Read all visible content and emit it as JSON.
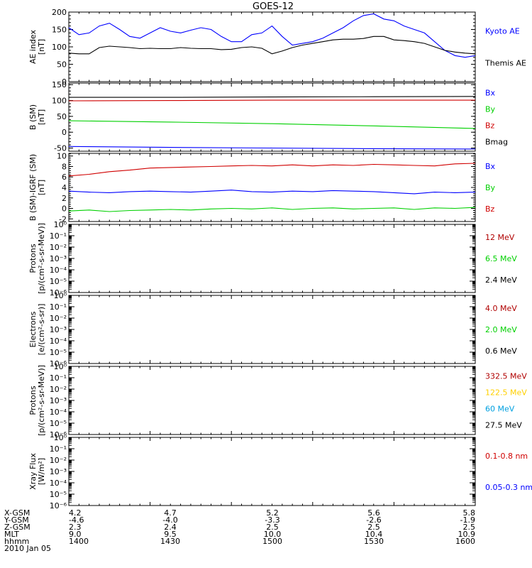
{
  "title": "GOES-12",
  "colors": {
    "black": "#000000",
    "blue": "#0000ff",
    "red": "#d00000",
    "green": "#00d000",
    "yellow": "#ffd000",
    "cyan": "#00a0e0",
    "darkred": "#b00000"
  },
  "chart_data": [
    {
      "type": "line",
      "ylabel": [
        "AE index",
        "[nT]"
      ],
      "ylim": [
        0,
        200
      ],
      "yticks": [
        0,
        50,
        100,
        150,
        200
      ],
      "xlim": [
        1400,
        1600
      ],
      "legend": [
        {
          "label": "Kyoto AE",
          "color": "blue"
        },
        {
          "label": "Themis AE",
          "color": "black"
        }
      ],
      "series": [
        {
          "name": "Kyoto AE",
          "color": "blue",
          "x": [
            1400,
            1405,
            1410,
            1415,
            1420,
            1425,
            1430,
            1435,
            1440,
            1445,
            1450,
            1455,
            1460,
            1465,
            1470,
            1475,
            1480,
            1485,
            1490,
            1495,
            1500,
            1505,
            1510,
            1515,
            1520,
            1525,
            1530,
            1535,
            1540,
            1545,
            1550,
            1555,
            1560,
            1565,
            1570,
            1575,
            1580,
            1585,
            1590,
            1595,
            1600
          ],
          "y": [
            155,
            135,
            140,
            160,
            168,
            150,
            130,
            125,
            140,
            155,
            145,
            140,
            148,
            155,
            150,
            130,
            115,
            115,
            135,
            140,
            160,
            130,
            105,
            110,
            115,
            125,
            140,
            155,
            175,
            190,
            195,
            180,
            175,
            160,
            150,
            140,
            115,
            90,
            75,
            70,
            75
          ]
        },
        {
          "name": "Themis AE",
          "color": "black",
          "x": [
            1400,
            1405,
            1410,
            1415,
            1420,
            1425,
            1430,
            1435,
            1440,
            1445,
            1450,
            1455,
            1460,
            1465,
            1470,
            1475,
            1480,
            1485,
            1490,
            1495,
            1500,
            1505,
            1510,
            1515,
            1520,
            1525,
            1530,
            1535,
            1540,
            1545,
            1550,
            1555,
            1560,
            1565,
            1570,
            1575,
            1580,
            1585,
            1590,
            1595,
            1600
          ],
          "y": [
            82,
            80,
            80,
            98,
            102,
            100,
            98,
            95,
            96,
            95,
            95,
            98,
            96,
            95,
            95,
            92,
            93,
            98,
            100,
            96,
            80,
            88,
            98,
            105,
            110,
            115,
            120,
            122,
            122,
            124,
            130,
            130,
            120,
            118,
            115,
            110,
            100,
            90,
            85,
            82,
            80
          ]
        }
      ]
    },
    {
      "type": "line",
      "ylabel": [
        "B (SM)",
        "[nT]"
      ],
      "ylim": [
        -60,
        155
      ],
      "yticks": [
        -50,
        0,
        50,
        100,
        150
      ],
      "xlim": [
        1400,
        1600
      ],
      "legend": [
        {
          "label": "Bx",
          "color": "blue"
        },
        {
          "label": "By",
          "color": "green"
        },
        {
          "label": "Bz",
          "color": "red"
        },
        {
          "label": "Bmag",
          "color": "black"
        }
      ],
      "series": [
        {
          "name": "Bmag",
          "color": "black",
          "x": [
            1400,
            1450,
            1500,
            1550,
            1600
          ],
          "y": [
            110,
            110,
            111,
            112,
            113
          ]
        },
        {
          "name": "Bz",
          "color": "red",
          "x": [
            1400,
            1450,
            1500,
            1550,
            1600
          ],
          "y": [
            99,
            100,
            101,
            101,
            101
          ]
        },
        {
          "name": "By",
          "color": "green",
          "x": [
            1400,
            1450,
            1500,
            1550,
            1600
          ],
          "y": [
            36,
            32,
            27,
            20,
            12
          ]
        },
        {
          "name": "Bx",
          "color": "blue",
          "x": [
            1400,
            1450,
            1500,
            1550,
            1600
          ],
          "y": [
            -45,
            -48,
            -50,
            -52,
            -53
          ]
        }
      ]
    },
    {
      "type": "line",
      "ylabel": [
        "B (SM)-IGRF (SM)",
        "[nT]"
      ],
      "ylim": [
        -2.5,
        10.5
      ],
      "yticks": [
        -2,
        0,
        2,
        4,
        6,
        8,
        10
      ],
      "xlim": [
        1400,
        1600
      ],
      "legend": [
        {
          "label": "Bx",
          "color": "blue"
        },
        {
          "label": "By",
          "color": "green"
        },
        {
          "label": "Bz",
          "color": "red"
        }
      ],
      "series": [
        {
          "name": "Bz",
          "color": "red",
          "x": [
            1400,
            1410,
            1420,
            1430,
            1440,
            1450,
            1460,
            1470,
            1480,
            1490,
            1500,
            1510,
            1520,
            1530,
            1540,
            1550,
            1560,
            1570,
            1580,
            1590,
            1600
          ],
          "y": [
            6.2,
            6.5,
            7.0,
            7.3,
            7.7,
            7.8,
            7.9,
            8.0,
            8.1,
            8.2,
            8.1,
            8.3,
            8.1,
            8.3,
            8.2,
            8.4,
            8.3,
            8.2,
            8.1,
            8.5,
            8.6
          ]
        },
        {
          "name": "Bx",
          "color": "blue",
          "x": [
            1400,
            1410,
            1420,
            1430,
            1440,
            1450,
            1460,
            1470,
            1480,
            1490,
            1500,
            1510,
            1520,
            1530,
            1540,
            1550,
            1560,
            1570,
            1580,
            1590,
            1600
          ],
          "y": [
            3.3,
            3.1,
            3.0,
            3.2,
            3.3,
            3.2,
            3.1,
            3.3,
            3.5,
            3.2,
            3.1,
            3.3,
            3.2,
            3.4,
            3.3,
            3.2,
            3.0,
            2.8,
            3.1,
            3.0,
            3.1
          ]
        },
        {
          "name": "By",
          "color": "green",
          "x": [
            1400,
            1410,
            1420,
            1430,
            1440,
            1450,
            1460,
            1470,
            1480,
            1490,
            1500,
            1510,
            1520,
            1530,
            1540,
            1550,
            1560,
            1570,
            1580,
            1590,
            1600
          ],
          "y": [
            -0.5,
            -0.3,
            -0.6,
            -0.4,
            -0.3,
            -0.2,
            -0.3,
            -0.1,
            0.0,
            -0.1,
            0.1,
            -0.2,
            0.0,
            0.1,
            -0.1,
            0.0,
            0.1,
            -0.2,
            0.1,
            0.0,
            0.2
          ]
        }
      ]
    },
    {
      "type": "line",
      "scale": "log",
      "ylabel": [
        "Protons",
        "[p/(cm²-s-sr-MeV)]"
      ],
      "ylim": [
        1e-06,
        1
      ],
      "yticks": [
        "10⁰",
        "10⁻¹",
        "10⁻²",
        "10⁻³",
        "10⁻⁴",
        "10⁻⁵",
        "10⁻⁶"
      ],
      "legend": [
        {
          "label": "12 MeV",
          "color": "darkred"
        },
        {
          "label": "6.5 MeV",
          "color": "green"
        },
        {
          "label": "2.4 MeV",
          "color": "black"
        }
      ],
      "series": []
    },
    {
      "type": "line",
      "scale": "log",
      "ylabel": [
        "Electrons",
        "[e/(cm²-s-sr)]"
      ],
      "ylim": [
        1e-06,
        1
      ],
      "yticks": [
        "10⁰",
        "10⁻¹",
        "10⁻²",
        "10⁻³",
        "10⁻⁴",
        "10⁻⁵",
        "10⁻⁶"
      ],
      "legend": [
        {
          "label": "4.0 MeV",
          "color": "darkred"
        },
        {
          "label": "2.0 MeV",
          "color": "green"
        },
        {
          "label": "0.6 MeV",
          "color": "black"
        }
      ],
      "series": []
    },
    {
      "type": "line",
      "scale": "log",
      "ylabel": [
        "Protons",
        "[p/(cm²-s-sr-MeV)]"
      ],
      "ylim": [
        1e-06,
        1
      ],
      "yticks": [
        "10⁰",
        "10⁻¹",
        "10⁻²",
        "10⁻³",
        "10⁻⁴",
        "10⁻⁵",
        "10⁻⁶"
      ],
      "legend": [
        {
          "label": "332.5 MeV",
          "color": "darkred"
        },
        {
          "label": "122.5 MeV",
          "color": "yellow"
        },
        {
          "label": "60 MeV",
          "color": "cyan"
        },
        {
          "label": "27.5 MeV",
          "color": "black"
        }
      ],
      "series": []
    },
    {
      "type": "line",
      "scale": "log",
      "ylabel": [
        "Xray Flux",
        "[W/m²]"
      ],
      "ylim": [
        1e-06,
        1
      ],
      "yticks": [
        "10⁰",
        "10⁻¹",
        "10⁻²",
        "10⁻³",
        "10⁻⁴",
        "10⁻⁵",
        "10⁻⁶"
      ],
      "legend": [
        {
          "label": "0.1-0.8 nm",
          "color": "red"
        },
        {
          "label": "0.05-0.3 nm",
          "color": "blue"
        }
      ],
      "series": []
    }
  ],
  "footer": {
    "rows": [
      {
        "label": "X-GSM",
        "values": [
          "4.2",
          "4.7",
          "5.2",
          "5.6",
          "5.8"
        ]
      },
      {
        "label": "Y-GSM",
        "values": [
          "-4.6",
          "-4.0",
          "-3.3",
          "-2.6",
          "-1.9"
        ]
      },
      {
        "label": "Z-GSM",
        "values": [
          "2.3",
          "2.4",
          "2.5",
          "2.5",
          "2.5"
        ]
      },
      {
        "label": "MLT",
        "values": [
          "9.0",
          "9.5",
          "10.0",
          "10.4",
          "10.9"
        ]
      },
      {
        "label": "hhmm",
        "values": [
          "1400",
          "1430",
          "1500",
          "1530",
          "1600"
        ]
      }
    ],
    "date": "2010 Jan 05"
  }
}
